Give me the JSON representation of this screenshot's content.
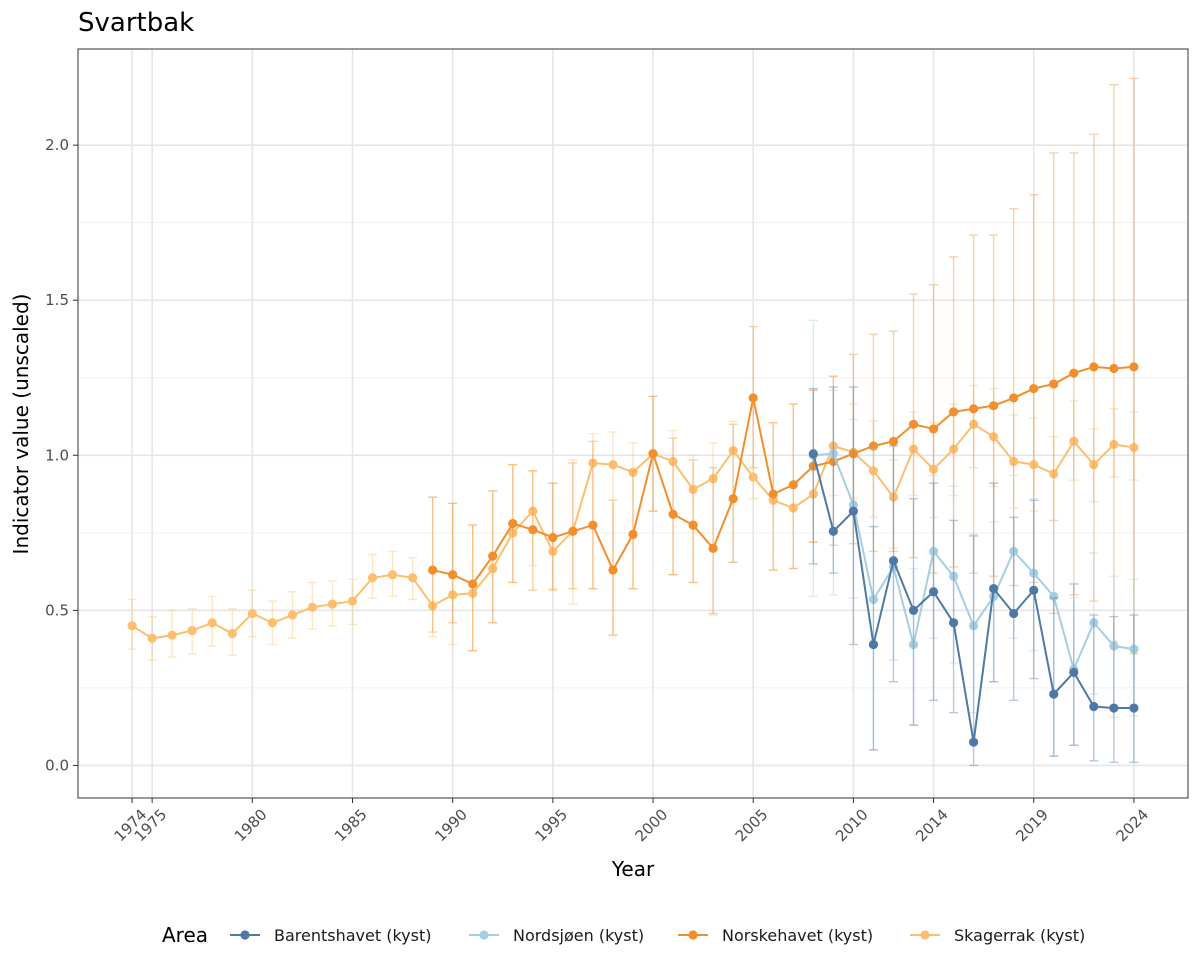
{
  "chart_data": {
    "type": "line",
    "title": "Svartbak",
    "xlabel": "Year",
    "ylabel": "Indicator value (unscaled)",
    "xlim": [
      1971.3,
      2026.7
    ],
    "ylim": [
      -0.105,
      2.31
    ],
    "x_ticks": [
      1974,
      1975,
      1980,
      1985,
      1990,
      1995,
      2000,
      2005,
      2010,
      2014,
      2019,
      2024
    ],
    "y_ticks": [
      0.0,
      0.5,
      1.0,
      1.5,
      2.0
    ],
    "y_tick_labels": [
      "0.0",
      "0.5",
      "1.0",
      "1.5",
      "2.0"
    ],
    "grid": true,
    "legend": {
      "title": "Area",
      "position": "bottom"
    },
    "series": [
      {
        "name": "Skagerrak (kyst)",
        "color": "#FDBF6F",
        "points": [
          [
            1974,
            0.45,
            0.375,
            0.535
          ],
          [
            1975,
            0.41,
            0.34,
            0.48
          ],
          [
            1976,
            0.42,
            0.35,
            0.5
          ],
          [
            1977,
            0.435,
            0.36,
            0.505
          ],
          [
            1978,
            0.46,
            0.385,
            0.545
          ],
          [
            1979,
            0.425,
            0.355,
            0.505
          ],
          [
            1980,
            0.49,
            0.415,
            0.565
          ],
          [
            1981,
            0.46,
            0.39,
            0.53
          ],
          [
            1982,
            0.485,
            0.41,
            0.56
          ],
          [
            1983,
            0.51,
            0.44,
            0.59
          ],
          [
            1984,
            0.52,
            0.45,
            0.595
          ],
          [
            1985,
            0.53,
            0.455,
            0.6
          ],
          [
            1986,
            0.605,
            0.54,
            0.68
          ],
          [
            1987,
            0.615,
            0.545,
            0.69
          ],
          [
            1988,
            0.605,
            0.535,
            0.67
          ],
          [
            1989,
            0.515,
            0.415,
            0.865
          ],
          [
            1990,
            0.55,
            0.39,
            0.845
          ],
          [
            1991,
            0.555,
            0.37,
            0.775
          ],
          [
            1992,
            0.635,
            0.46,
            0.885
          ],
          [
            1993,
            0.75,
            0.59,
            0.97
          ],
          [
            1994,
            0.82,
            0.645,
            0.95
          ],
          [
            1995,
            0.69,
            0.57,
            0.91
          ],
          [
            1996,
            0.755,
            0.52,
            0.985
          ],
          [
            1997,
            0.975,
            0.57,
            1.07
          ],
          [
            1998,
            0.97,
            0.42,
            1.075
          ],
          [
            1999,
            0.945,
            0.57,
            1.04
          ],
          [
            2000,
            1.005,
            0.82,
            1.19
          ],
          [
            2001,
            0.98,
            0.615,
            1.08
          ],
          [
            2002,
            0.89,
            0.59,
            1.0
          ],
          [
            2003,
            0.925,
            0.485,
            1.04
          ],
          [
            2004,
            1.015,
            0.655,
            1.11
          ],
          [
            2005,
            0.93,
            0.86,
            1.0
          ],
          [
            2006,
            0.855,
            0.63,
            1.105
          ],
          [
            2007,
            0.83,
            0.635,
            1.165
          ],
          [
            2008,
            0.875,
            0.72,
            1.21
          ],
          [
            2009,
            1.03,
            0.87,
            1.255
          ],
          [
            2010,
            1.01,
            0.86,
            1.165
          ],
          [
            2011,
            0.95,
            0.8,
            1.11
          ],
          [
            2012,
            0.865,
            0.7,
            1.035
          ],
          [
            2013,
            1.02,
            0.87,
            1.14
          ],
          [
            2014,
            0.955,
            0.8,
            1.105
          ],
          [
            2015,
            1.02,
            0.87,
            1.165
          ],
          [
            2016,
            1.1,
            0.96,
            1.225
          ],
          [
            2017,
            1.06,
            0.9,
            1.215
          ],
          [
            2018,
            0.98,
            0.83,
            1.13
          ],
          [
            2019,
            0.97,
            0.82,
            1.12
          ],
          [
            2020,
            0.94,
            0.79,
            1.06
          ],
          [
            2021,
            1.045,
            0.92,
            1.175
          ],
          [
            2022,
            0.97,
            0.85,
            1.085
          ],
          [
            2023,
            1.035,
            0.93,
            1.15
          ],
          [
            2024,
            1.025,
            0.92,
            1.14
          ]
        ]
      },
      {
        "name": "Norskehavet (kyst)",
        "color": "#F28E2B",
        "points": [
          [
            1989,
            0.63,
            0.43,
            0.865
          ],
          [
            1990,
            0.615,
            0.46,
            0.845
          ],
          [
            1991,
            0.585,
            0.37,
            0.775
          ],
          [
            1992,
            0.675,
            0.46,
            0.885
          ],
          [
            1993,
            0.78,
            0.59,
            0.97
          ],
          [
            1994,
            0.76,
            0.565,
            0.95
          ],
          [
            1995,
            0.735,
            0.565,
            0.91
          ],
          [
            1996,
            0.755,
            0.57,
            0.975
          ],
          [
            1997,
            0.775,
            0.57,
            1.045
          ],
          [
            1998,
            0.63,
            0.42,
            0.855
          ],
          [
            1999,
            0.745,
            0.57,
            0.95
          ],
          [
            2000,
            1.005,
            0.82,
            1.19
          ],
          [
            2001,
            0.81,
            0.615,
            1.055
          ],
          [
            2002,
            0.775,
            0.59,
            0.985
          ],
          [
            2003,
            0.7,
            0.49,
            0.96
          ],
          [
            2004,
            0.86,
            0.655,
            1.1
          ],
          [
            2005,
            1.185,
            0.96,
            1.415
          ],
          [
            2006,
            0.875,
            0.63,
            1.105
          ],
          [
            2007,
            0.905,
            0.635,
            1.165
          ],
          [
            2008,
            0.965,
            0.72,
            1.21
          ],
          [
            2009,
            0.98,
            0.71,
            1.255
          ],
          [
            2010,
            1.005,
            0.715,
            1.325
          ],
          [
            2011,
            1.03,
            0.69,
            1.39
          ],
          [
            2012,
            1.045,
            0.69,
            1.4
          ],
          [
            2013,
            1.1,
            0.67,
            1.52
          ],
          [
            2014,
            1.085,
            0.62,
            1.55
          ],
          [
            2015,
            1.14,
            0.64,
            1.64
          ],
          [
            2016,
            1.15,
            0.62,
            1.71
          ],
          [
            2017,
            1.16,
            0.61,
            1.71
          ],
          [
            2018,
            1.185,
            0.58,
            1.795
          ],
          [
            2019,
            1.215,
            0.59,
            1.84
          ],
          [
            2020,
            1.23,
            0.49,
            1.975
          ],
          [
            2021,
            1.265,
            0.55,
            1.975
          ],
          [
            2022,
            1.285,
            0.53,
            2.035
          ],
          [
            2023,
            1.28,
            0.4,
            2.195
          ],
          [
            2024,
            1.285,
            0.36,
            2.215
          ]
        ]
      },
      {
        "name": "Nordsjøen (kyst)",
        "color": "#A6CEE3",
        "points": [
          [
            2008,
            1.0,
            0.545,
            1.435
          ],
          [
            2009,
            1.005,
            0.55,
            1.21
          ],
          [
            2010,
            0.84,
            0.54,
            1.115
          ],
          [
            2011,
            0.535,
            0.05,
            1.02
          ],
          [
            2012,
            0.64,
            0.34,
            0.985
          ],
          [
            2013,
            0.39,
            0.13,
            0.635
          ],
          [
            2014,
            0.69,
            0.41,
            0.935
          ],
          [
            2015,
            0.61,
            0.33,
            0.9
          ],
          [
            2016,
            0.45,
            0.17,
            0.745
          ],
          [
            2017,
            0.545,
            0.27,
            0.785
          ],
          [
            2018,
            0.69,
            0.41,
            0.935
          ],
          [
            2019,
            0.62,
            0.37,
            0.86
          ],
          [
            2020,
            0.545,
            0.03,
            0.79
          ],
          [
            2021,
            0.31,
            0.065,
            0.54
          ],
          [
            2022,
            0.46,
            0.23,
            0.685
          ],
          [
            2023,
            0.385,
            0.155,
            0.61
          ],
          [
            2024,
            0.375,
            0.16,
            0.6
          ]
        ]
      },
      {
        "name": "Barentshavet (kyst)",
        "color": "#4E79A7",
        "points": [
          [
            2008,
            1.005,
            0.65,
            1.215
          ],
          [
            2009,
            0.755,
            0.62,
            1.22
          ],
          [
            2010,
            0.82,
            0.39,
            1.22
          ],
          [
            2011,
            0.39,
            0.05,
            0.77
          ],
          [
            2012,
            0.66,
            0.27,
            1.03
          ],
          [
            2013,
            0.5,
            0.13,
            0.86
          ],
          [
            2014,
            0.56,
            0.21,
            0.91
          ],
          [
            2015,
            0.46,
            0.17,
            0.79
          ],
          [
            2016,
            0.075,
            0.0,
            0.74
          ],
          [
            2017,
            0.57,
            0.27,
            0.91
          ],
          [
            2018,
            0.49,
            0.21,
            0.8
          ],
          [
            2019,
            0.565,
            0.28,
            0.855
          ],
          [
            2020,
            0.23,
            0.03,
            0.54
          ],
          [
            2021,
            0.3,
            0.065,
            0.585
          ],
          [
            2022,
            0.19,
            0.015,
            0.485
          ],
          [
            2023,
            0.185,
            0.01,
            0.48
          ],
          [
            2024,
            0.185,
            0.01,
            0.485
          ]
        ]
      }
    ],
    "legend_order": [
      "Barentshavet (kyst)",
      "Nordsjøen (kyst)",
      "Norskehavet (kyst)",
      "Skagerrak (kyst)"
    ]
  }
}
